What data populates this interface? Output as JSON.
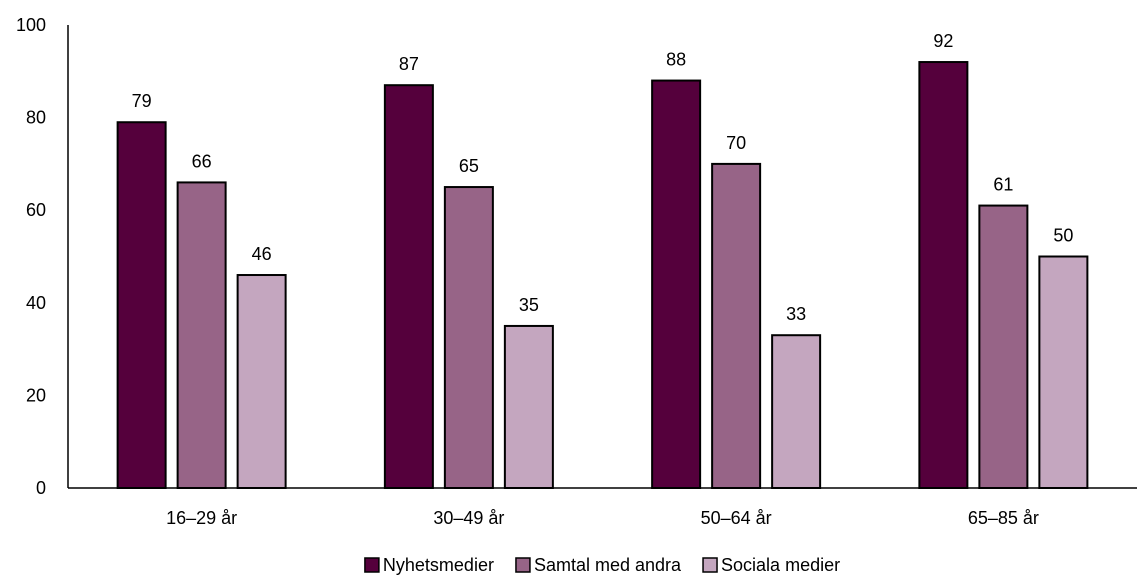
{
  "chart_data": {
    "type": "bar",
    "title": "",
    "xlabel": "",
    "ylabel": "",
    "ylim": [
      0,
      100
    ],
    "yticks": [
      0,
      20,
      40,
      60,
      80,
      100
    ],
    "grid": false,
    "legend_position": "bottom",
    "categories": [
      "16–29 år",
      "30–49 år",
      "50–64 år",
      "65–85 år"
    ],
    "series": [
      {
        "name": "Nyhetsmedier",
        "values": [
          79,
          87,
          88,
          92
        ],
        "color": "#55003c"
      },
      {
        "name": "Samtal med andra",
        "values": [
          66,
          65,
          70,
          61
        ],
        "color": "#976487"
      },
      {
        "name": "Sociala medier",
        "values": [
          46,
          35,
          33,
          50
        ],
        "color": "#c4a6bf"
      }
    ],
    "data_labels": true
  }
}
